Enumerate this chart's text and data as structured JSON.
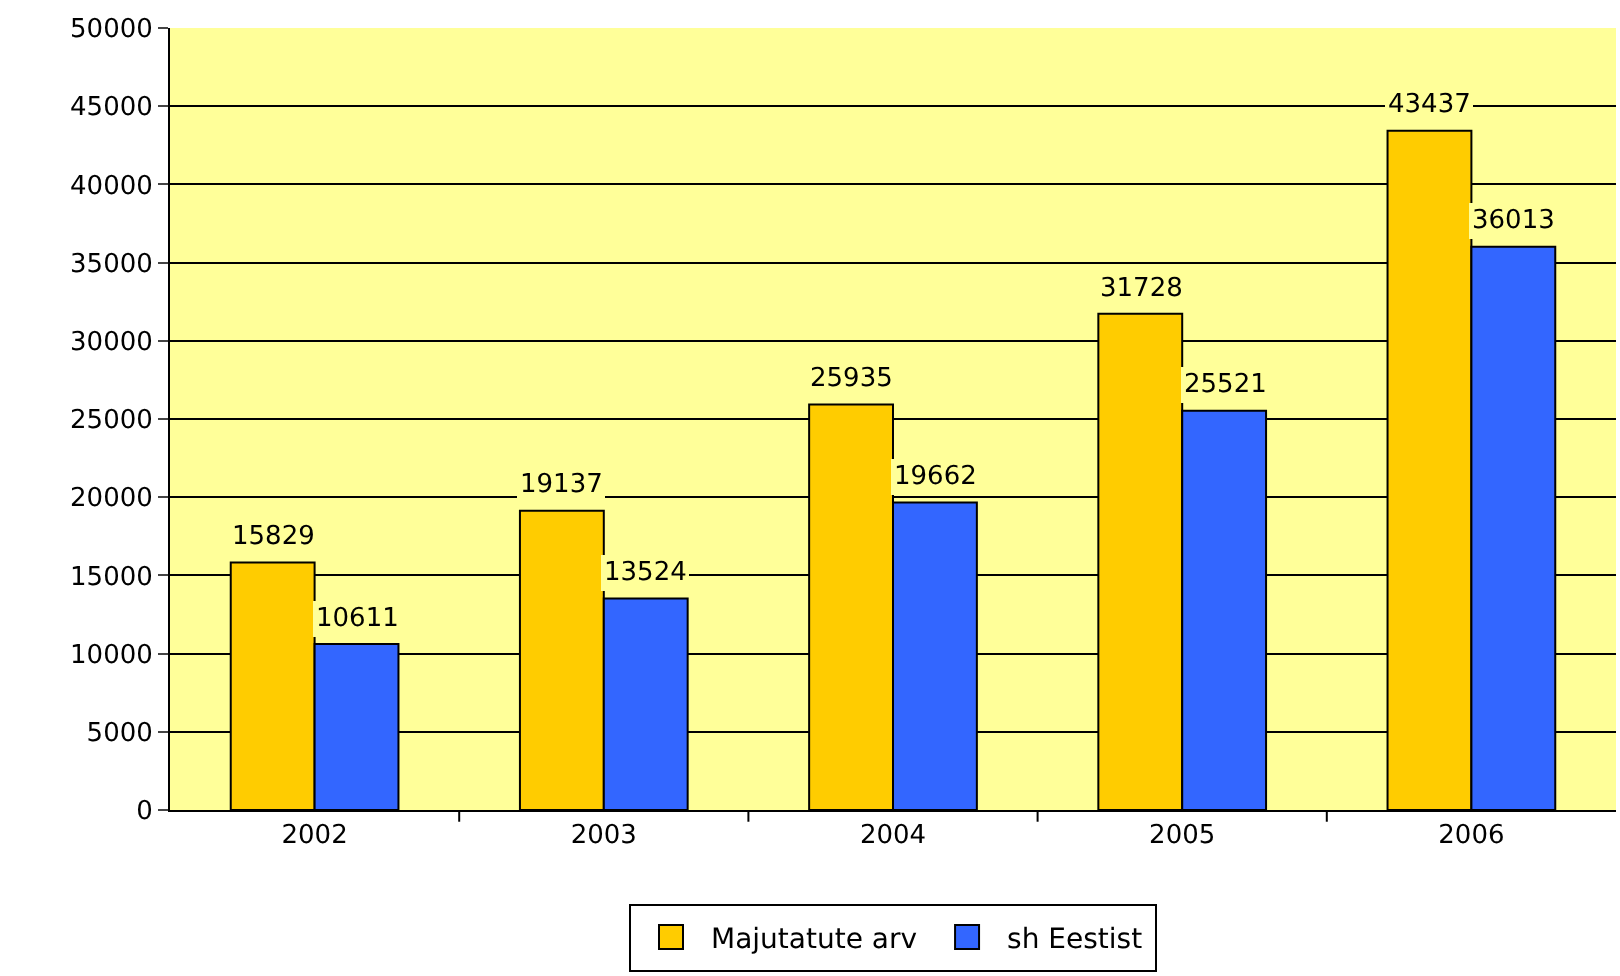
{
  "chart_data": {
    "type": "bar",
    "categories": [
      "2002",
      "2003",
      "2004",
      "2005",
      "2006"
    ],
    "series": [
      {
        "name": "Majutatute arv",
        "color": "#ffcc00",
        "values": [
          15829,
          19137,
          25935,
          31728,
          43437
        ]
      },
      {
        "name": "sh Eestist",
        "color": "#3366ff",
        "values": [
          10611,
          13524,
          19662,
          25521,
          36013
        ]
      }
    ],
    "ylim": [
      0,
      50000
    ],
    "yticks": [
      0,
      5000,
      10000,
      15000,
      20000,
      25000,
      30000,
      35000,
      40000,
      45000,
      50000
    ],
    "grid": "y",
    "legend": "bottom",
    "data_labels": true
  }
}
